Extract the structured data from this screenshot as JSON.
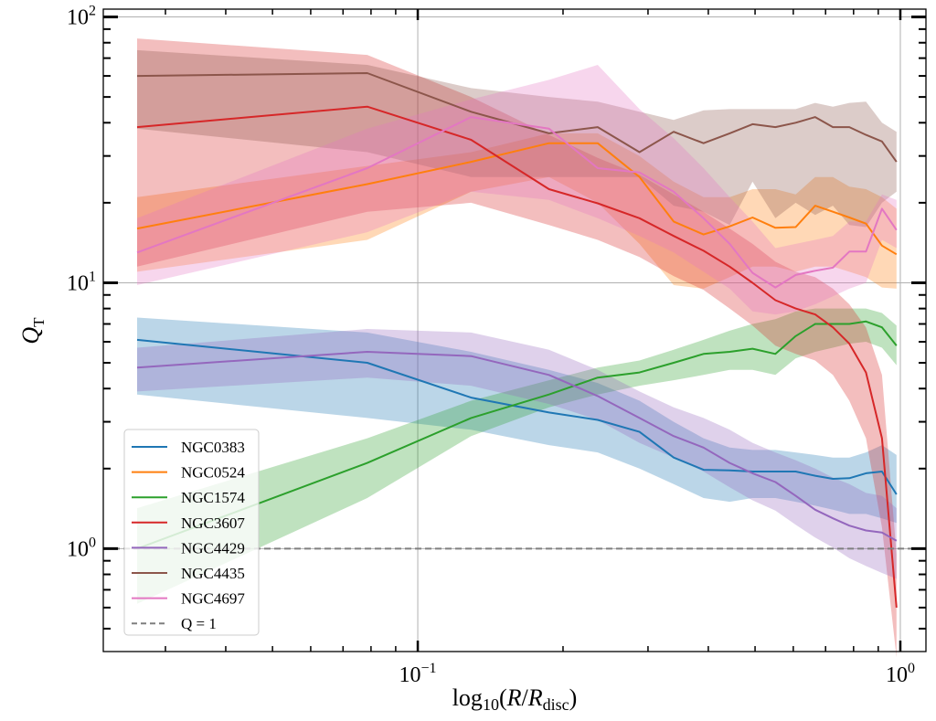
{
  "chart_data": {
    "type": "line",
    "title": "",
    "xlabel": "log10(R/Rdisc)",
    "xlabel_parts": {
      "main": "log",
      "sub1": "10",
      "open": "(",
      "r": "R",
      "slash": "/",
      "r2": "R",
      "sub2": "disc",
      "close": ")"
    },
    "ylabel": "QT",
    "ylabel_parts": {
      "main": "Q",
      "sub": "T"
    },
    "xscale": "log",
    "yscale": "log",
    "xlim": [
      0.0223,
      1.13
    ],
    "ylim": [
      0.41,
      107
    ],
    "grid": true,
    "x_ticks": [
      {
        "value": 0.1,
        "base": "10",
        "exp": "−1"
      },
      {
        "value": 1.0,
        "base": "10",
        "exp": "0"
      }
    ],
    "y_ticks": [
      {
        "value": 1,
        "base": "10",
        "exp": "0"
      },
      {
        "value": 10,
        "base": "10",
        "exp": "1"
      },
      {
        "value": 100,
        "base": "10",
        "exp": "2"
      }
    ],
    "x": [
      0.0262,
      0.0786,
      0.129,
      0.187,
      0.236,
      0.288,
      0.339,
      0.391,
      0.443,
      0.494,
      0.551,
      0.607,
      0.666,
      0.725,
      0.784,
      0.849,
      0.916,
      0.982
    ],
    "legend": {
      "placement": "lower-left"
    },
    "reference_line": {
      "name": "Q = 1",
      "value": 1,
      "color": "#7f7f7f",
      "style": "dashed"
    },
    "series": [
      {
        "name": "NGC0383",
        "color": "#1f77b4",
        "x": [
          0.0262,
          0.0786,
          0.129,
          0.187,
          0.236,
          0.288,
          0.339,
          0.391,
          0.443,
          0.494,
          0.551,
          0.607,
          0.666,
          0.725,
          0.784,
          0.849,
          0.916,
          0.982
        ],
        "values": [
          6.1,
          5.0,
          3.7,
          3.25,
          3.05,
          2.75,
          2.2,
          1.98,
          1.97,
          1.95,
          1.95,
          1.95,
          1.88,
          1.83,
          1.84,
          1.92,
          1.95,
          1.6
        ],
        "lower": [
          3.8,
          3.1,
          2.8,
          2.45,
          2.3,
          2.0,
          1.75,
          1.55,
          1.5,
          1.55,
          1.55,
          1.5,
          1.45,
          1.4,
          1.35,
          1.35,
          1.3,
          1.25
        ],
        "upper": [
          7.4,
          6.5,
          5.5,
          4.7,
          4.2,
          3.6,
          3.0,
          2.6,
          2.4,
          2.35,
          2.35,
          2.3,
          2.25,
          2.2,
          2.2,
          2.3,
          2.45,
          2.25
        ]
      },
      {
        "name": "NGC0524",
        "color": "#ff7f0e",
        "x": [
          0.0262,
          0.0786,
          0.129,
          0.187,
          0.236,
          0.288,
          0.339,
          0.391,
          0.443,
          0.494,
          0.551,
          0.607,
          0.666,
          0.725,
          0.784,
          0.849,
          0.916,
          0.982
        ],
        "values": [
          16.0,
          23.5,
          28.5,
          33.5,
          33.5,
          25.0,
          17.0,
          15.2,
          16.3,
          17.6,
          16.1,
          16.2,
          19.5,
          18.5,
          17.6,
          16.7,
          13.8,
          12.8
        ],
        "lower": [
          11.0,
          14.5,
          22.0,
          25.0,
          20.0,
          14.0,
          9.8,
          9.5,
          10.5,
          11.5,
          11.5,
          11.0,
          11.5,
          11.5,
          11.0,
          10.5,
          9.6,
          9.5
        ],
        "upper": [
          21.0,
          27.5,
          31.0,
          36.5,
          36.5,
          30.0,
          24.0,
          21.0,
          21.0,
          22.5,
          22.5,
          21.5,
          25.0,
          25.0,
          23.0,
          22.5,
          21.0,
          19.0
        ]
      },
      {
        "name": "NGC1574",
        "color": "#2ca02c",
        "x": [
          0.0262,
          0.0786,
          0.129,
          0.187,
          0.236,
          0.288,
          0.339,
          0.391,
          0.443,
          0.494,
          0.551,
          0.607,
          0.666,
          0.725,
          0.784,
          0.849,
          0.916,
          0.982
        ],
        "values": [
          1.0,
          2.1,
          3.1,
          3.8,
          4.4,
          4.6,
          5.0,
          5.4,
          5.5,
          5.65,
          5.4,
          6.3,
          7.0,
          7.0,
          7.0,
          7.15,
          6.8,
          5.8
        ],
        "lower": [
          0.62,
          1.55,
          2.65,
          3.4,
          3.8,
          4.1,
          4.3,
          4.5,
          4.7,
          4.7,
          4.5,
          5.2,
          5.5,
          5.7,
          5.9,
          6.0,
          5.7,
          4.9
        ],
        "upper": [
          1.42,
          2.6,
          3.6,
          4.3,
          4.8,
          5.1,
          5.6,
          6.1,
          6.6,
          7.0,
          7.3,
          7.8,
          8.0,
          8.0,
          8.0,
          8.0,
          7.7,
          6.9
        ]
      },
      {
        "name": "NGC3607",
        "color": "#d62728",
        "x": [
          0.0262,
          0.0786,
          0.129,
          0.187,
          0.236,
          0.288,
          0.339,
          0.391,
          0.443,
          0.494,
          0.551,
          0.607,
          0.666,
          0.725,
          0.784,
          0.849,
          0.916,
          0.982
        ],
        "values": [
          38.5,
          46.0,
          34.5,
          22.5,
          19.9,
          17.5,
          15.0,
          13.2,
          11.5,
          10.0,
          8.6,
          8.0,
          7.6,
          6.8,
          5.9,
          4.6,
          2.6,
          0.6
        ],
        "lower": [
          11.5,
          18.5,
          20.0,
          16.5,
          14.5,
          12.5,
          10.6,
          9.4,
          8.0,
          6.9,
          5.8,
          5.4,
          5.1,
          4.5,
          3.6,
          2.6,
          1.2,
          0.39
        ],
        "upper": [
          83.0,
          72.0,
          50.0,
          36.0,
          29.5,
          25.5,
          21.5,
          18.5,
          16.0,
          14.0,
          12.0,
          11.0,
          10.5,
          9.5,
          8.3,
          6.8,
          4.5,
          0.95
        ]
      },
      {
        "name": "NGC4429",
        "color": "#9467bd",
        "x": [
          0.0262,
          0.0786,
          0.129,
          0.187,
          0.236,
          0.288,
          0.339,
          0.391,
          0.443,
          0.494,
          0.551,
          0.607,
          0.666,
          0.725,
          0.784,
          0.849,
          0.916,
          0.982
        ],
        "values": [
          4.8,
          5.5,
          5.3,
          4.5,
          3.75,
          3.1,
          2.65,
          2.4,
          2.1,
          1.92,
          1.78,
          1.58,
          1.4,
          1.3,
          1.22,
          1.17,
          1.15,
          1.07
        ],
        "lower": [
          3.9,
          4.4,
          4.1,
          3.5,
          3.05,
          2.5,
          2.2,
          1.95,
          1.7,
          1.52,
          1.39,
          1.23,
          1.1,
          1.01,
          0.92,
          0.86,
          0.81,
          0.77
        ],
        "upper": [
          5.7,
          6.7,
          6.5,
          5.6,
          4.7,
          3.9,
          3.4,
          3.1,
          2.8,
          2.5,
          2.3,
          2.15,
          2.0,
          1.85,
          1.75,
          1.62,
          1.58,
          1.42
        ]
      },
      {
        "name": "NGC4435",
        "color": "#8c564b",
        "x": [
          0.0262,
          0.0786,
          0.129,
          0.187,
          0.236,
          0.288,
          0.339,
          0.391,
          0.443,
          0.494,
          0.551,
          0.607,
          0.666,
          0.725,
          0.784,
          0.849,
          0.916,
          0.982
        ],
        "values": [
          60.0,
          61.5,
          44.0,
          36.5,
          38.5,
          31.0,
          37.0,
          33.5,
          36.5,
          39.5,
          38.5,
          40.0,
          42.0,
          38.5,
          38.5,
          36.0,
          34.0,
          28.5
        ],
        "lower": [
          38.0,
          31.0,
          25.0,
          25.0,
          25.0,
          25.0,
          19.5,
          18.5,
          16.5,
          24.0,
          17.5,
          20.0,
          18.0,
          19.5,
          16.5,
          16.2,
          20.0,
          22.0
        ],
        "upper": [
          75.0,
          66.0,
          54.0,
          50.0,
          48.0,
          44.0,
          41.0,
          44.5,
          45.0,
          45.0,
          45.0,
          45.0,
          47.5,
          46.0,
          47.5,
          48.0,
          40.0,
          37.0
        ]
      },
      {
        "name": "NGC4697",
        "color": "#e377c2",
        "x": [
          0.0262,
          0.0786,
          0.129,
          0.187,
          0.236,
          0.288,
          0.339,
          0.391,
          0.443,
          0.494,
          0.551,
          0.607,
          0.666,
          0.725,
          0.784,
          0.849,
          0.916,
          0.982
        ],
        "values": [
          13.0,
          27.0,
          42.0,
          38.0,
          27.0,
          26.0,
          22.0,
          17.5,
          14.0,
          10.9,
          9.6,
          10.7,
          11.1,
          11.4,
          13.1,
          13.1,
          19.0,
          15.8
        ],
        "lower": [
          9.8,
          15.5,
          22.0,
          20.5,
          17.5,
          15.0,
          13.0,
          11.0,
          9.5,
          7.8,
          7.6,
          7.8,
          8.3,
          8.9,
          9.5,
          10.0,
          14.5,
          13.5
        ],
        "upper": [
          17.5,
          38.0,
          49.0,
          58.0,
          66.0,
          45.0,
          35.0,
          27.0,
          21.0,
          17.0,
          13.5,
          14.0,
          14.5,
          15.0,
          17.0,
          17.0,
          21.5,
          20.5
        ]
      }
    ]
  }
}
